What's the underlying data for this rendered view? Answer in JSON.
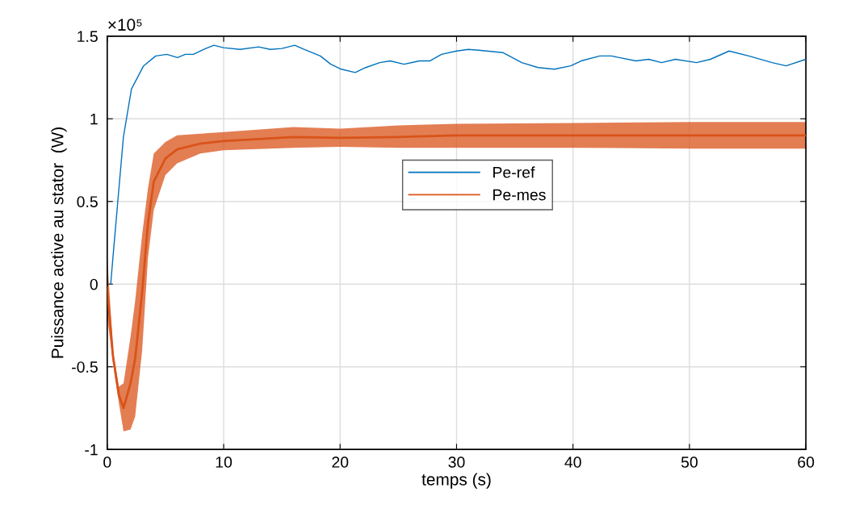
{
  "chart_data": {
    "type": "line",
    "xlabel": "temps (s)",
    "ylabel": "Puissance active au stator  (W)",
    "annotations": [
      "×10⁵"
    ],
    "xlim": [
      0,
      60
    ],
    "ylim": [
      -1,
      1.5
    ],
    "xticks": [
      0,
      10,
      20,
      30,
      40,
      50,
      60
    ],
    "yticks": [
      -1,
      -0.5,
      0,
      0.5,
      1,
      1.5
    ],
    "grid": true,
    "legend": "center",
    "marker": "none",
    "line_style": "solid",
    "series": [
      {
        "name": "Pe-ref",
        "color": "#0072bd",
        "x": [
          0.3,
          0.49,
          0.97,
          1.39,
          2.08,
          3.12,
          4.16,
          5.13,
          6.03,
          6.7,
          7.4,
          8.3,
          9.15,
          10.0,
          11.4,
          13.0,
          14.0,
          15.0,
          16.1,
          16.9,
          18.3,
          19.2,
          20.1,
          21.3,
          22.2,
          23.4,
          24.3,
          25.5,
          26.8,
          27.7,
          28.7,
          30.0,
          31.0,
          31.9,
          34.0,
          35.6,
          37.0,
          38.4,
          39.8,
          40.7,
          42.3,
          43.3,
          45.4,
          46.5,
          47.6,
          48.8,
          50.6,
          51.8,
          53.4,
          55.1,
          57.1,
          58.3,
          60
        ],
        "values": [
          0,
          0.16,
          0.55,
          0.89,
          1.18,
          1.32,
          1.38,
          1.39,
          1.37,
          1.39,
          1.39,
          1.42,
          1.445,
          1.43,
          1.42,
          1.435,
          1.42,
          1.425,
          1.445,
          1.42,
          1.38,
          1.33,
          1.3,
          1.28,
          1.31,
          1.34,
          1.35,
          1.33,
          1.35,
          1.35,
          1.39,
          1.41,
          1.42,
          1.415,
          1.4,
          1.34,
          1.31,
          1.3,
          1.32,
          1.35,
          1.38,
          1.38,
          1.35,
          1.36,
          1.34,
          1.36,
          1.34,
          1.36,
          1.41,
          1.38,
          1.34,
          1.32,
          1.36
        ]
      },
      {
        "name": "Pe-mes",
        "color": "#d95319",
        "x": [
          0,
          0.5,
          1.0,
          1.4,
          2.0,
          2.4,
          3.0,
          3.5,
          4,
          5,
          6,
          8,
          10,
          16,
          20,
          25,
          30,
          40,
          50,
          60
        ],
        "values": [
          -0.02,
          -0.44,
          -0.67,
          -0.75,
          -0.6,
          -0.45,
          -0.05,
          0.37,
          0.62,
          0.76,
          0.815,
          0.85,
          0.865,
          0.89,
          0.885,
          0.89,
          0.9,
          0.9,
          0.9,
          0.9
        ],
        "lower": [
          -0.2,
          -0.48,
          -0.72,
          -0.89,
          -0.88,
          -0.8,
          -0.4,
          0.16,
          0.45,
          0.66,
          0.73,
          0.79,
          0.81,
          0.825,
          0.83,
          0.825,
          0.825,
          0.825,
          0.82,
          0.82
        ],
        "upper": [
          0.17,
          -0.4,
          -0.62,
          -0.6,
          -0.32,
          -0.1,
          0.3,
          0.58,
          0.79,
          0.86,
          0.9,
          0.91,
          0.92,
          0.95,
          0.94,
          0.96,
          0.97,
          0.975,
          0.98,
          0.98
        ]
      }
    ]
  }
}
